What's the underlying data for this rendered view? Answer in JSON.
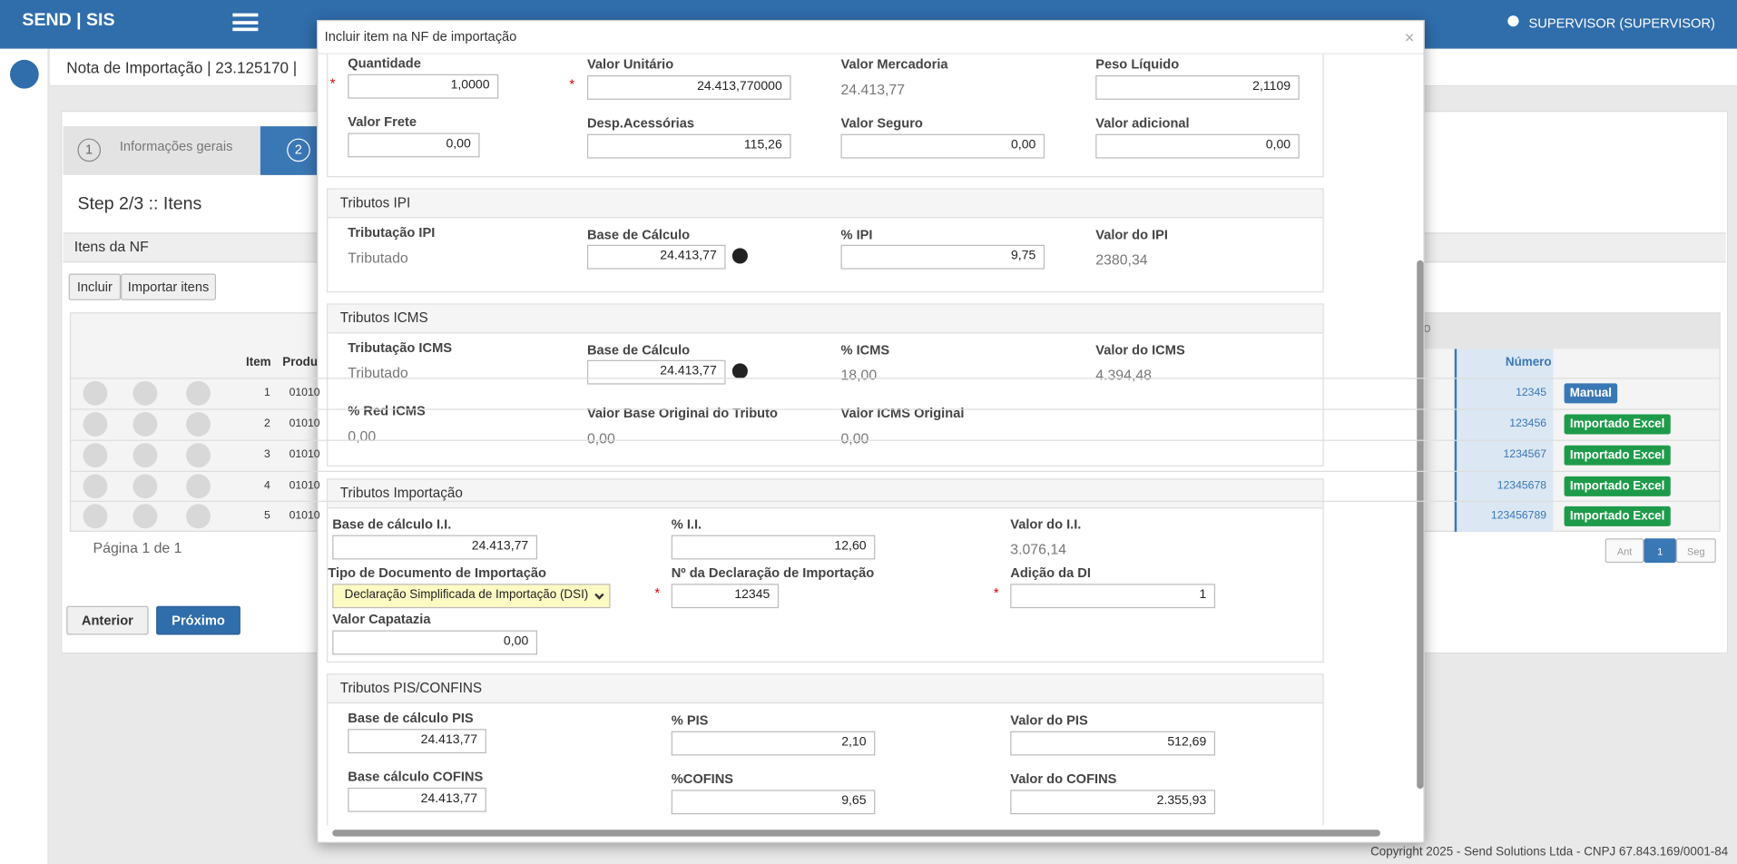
{
  "navbar": {
    "brand": "SEND | SIS",
    "user": "SUPERVISOR (SUPERVISOR)"
  },
  "page": {
    "title": "Nota de Importação | 23.125170 |",
    "steps": [
      {
        "number": "1",
        "label": "Informações gerais"
      },
      {
        "number": "2"
      }
    ],
    "step_title": "Step 2/3 :: Itens",
    "panel_title": "Itens da NF",
    "buttons": [
      "Incluir",
      "Importar itens"
    ],
    "table": {
      "group_header": "o",
      "headers": [
        "Item",
        "Produ",
        "Número"
      ],
      "rows": [
        [
          "1",
          "01010",
          "12345",
          "Manual"
        ],
        [
          "2",
          "01010",
          "123456",
          "Importado Excel"
        ],
        [
          "3",
          "01010",
          "1234567",
          "Importado Excel"
        ],
        [
          "4",
          "01010",
          "12345678",
          "Importado Excel"
        ],
        [
          "5",
          "01010",
          "123456789",
          "Importado Excel"
        ]
      ]
    },
    "pagination": {
      "summary": "Página 1 de 1",
      "pages": [
        "Ant",
        "1",
        "Seg"
      ]
    },
    "nav_buttons": [
      "Anterior",
      "Próximo"
    ]
  },
  "footer": "Copyright 2025 - Send Solutions Ltda - CNPJ 67.843.169/0001-84",
  "modal": {
    "title": "Incluir item na NF de importação",
    "close": "×",
    "sections": [
      {
        "fields": [
          {
            "label": "Quantidade",
            "value": "1,0000",
            "kind": "input",
            "required_mark": "*"
          },
          {
            "label": "Valor Unitário",
            "value": "24.413,770000",
            "kind": "input",
            "required_mark": "*"
          },
          {
            "label": "Valor Mercadoria",
            "value": "24.413,77",
            "kind": "text"
          },
          {
            "label": "Peso Líquido",
            "value": "2,1109",
            "kind": "input"
          },
          {
            "label": "Valor Frete",
            "value": "0,00",
            "kind": "input"
          },
          {
            "label": "Desp.Acessórias",
            "value": "115,26",
            "kind": "input"
          },
          {
            "label": "Valor Seguro",
            "value": "0,00",
            "kind": "input"
          },
          {
            "label": "Valor adicional",
            "value": "0,00",
            "kind": "input"
          }
        ]
      },
      {
        "title": "Tributos IPI",
        "fields": [
          {
            "label": "Tributação IPI",
            "value": "Tributado",
            "kind": "text"
          },
          {
            "label": "Base de Cálculo",
            "value": "24.413,77",
            "kind": "input"
          },
          {
            "label": "% IPI",
            "value": "9,75",
            "kind": "input"
          },
          {
            "label": "Valor do IPI",
            "value": "2380,34",
            "kind": "text"
          }
        ]
      },
      {
        "title": "Tributos ICMS",
        "fields": [
          {
            "label": "Tributação ICMS",
            "value": "Tributado",
            "kind": "text"
          },
          {
            "label": "Base de Cálculo",
            "value": "24.413,77",
            "kind": "input"
          },
          {
            "label": "% ICMS",
            "value": "18,00",
            "kind": "text"
          },
          {
            "label": "Valor do ICMS",
            "value": "4.394,48",
            "kind": "text"
          },
          {
            "label": "% Red ICMS",
            "value": "0,00",
            "kind": "text"
          },
          {
            "label": "Valor Base Original do Tributo",
            "value": "0,00",
            "kind": "text"
          },
          {
            "label": "Valor ICMS Original",
            "value": "0,00",
            "kind": "text"
          }
        ]
      },
      {
        "title": "Tributos Importação",
        "fields": [
          {
            "label": "Base de cálculo I.I.",
            "value": "24.413,77",
            "kind": "input"
          },
          {
            "label": "% I.I.",
            "value": "12,60",
            "kind": "input"
          },
          {
            "label": "Valor do I.I.",
            "value": "3.076,14",
            "kind": "text"
          },
          {
            "label": "Tipo de Documento de Importação",
            "value": "Declaração Simplificada de Importação (DSI)",
            "kind": "select"
          },
          {
            "label": "Nº da Declaração de Importação",
            "value": "12345",
            "kind": "input",
            "required_mark": "*"
          },
          {
            "label": "Adição da DI",
            "value": "1",
            "kind": "input",
            "required_mark": "*"
          },
          {
            "label": "Valor Capatazia",
            "value": "0,00",
            "kind": "input"
          }
        ]
      },
      {
        "title": "Tributos PIS/CONFINS",
        "fields": [
          {
            "label": "Base de cálculo PIS",
            "value": "24.413,77",
            "kind": "input"
          },
          {
            "label": "% PIS",
            "value": "2,10",
            "kind": "input"
          },
          {
            "label": "Valor do PIS",
            "value": "512,69",
            "kind": "input"
          },
          {
            "label": "Base cálculo COFINS",
            "value": "24.413,77",
            "kind": "input"
          },
          {
            "label": "%COFINS",
            "value": "9,65",
            "kind": "input"
          },
          {
            "label": "Valor do COFINS",
            "value": "2.355,93",
            "kind": "input"
          }
        ]
      }
    ]
  }
}
